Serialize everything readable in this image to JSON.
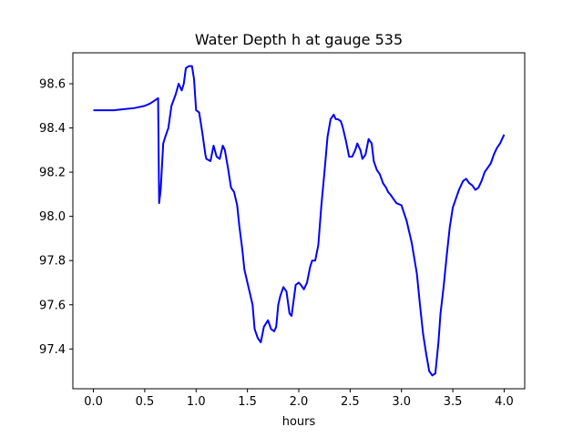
{
  "chart_data": {
    "type": "line",
    "title": "Water Depth h at gauge 535",
    "xlabel": "hours",
    "ylabel": "",
    "xlim": [
      -0.2,
      4.2
    ],
    "ylim": [
      97.22,
      98.74
    ],
    "xticks": [
      0.0,
      0.5,
      1.0,
      1.5,
      2.0,
      2.5,
      3.0,
      3.5,
      4.0
    ],
    "xtick_labels": [
      "0.0",
      "0.5",
      "1.0",
      "1.5",
      "2.0",
      "2.5",
      "3.0",
      "3.5",
      "4.0"
    ],
    "yticks": [
      97.4,
      97.6,
      97.8,
      98.0,
      98.2,
      98.4,
      98.6
    ],
    "ytick_labels": [
      "97.4",
      "97.6",
      "97.8",
      "98.0",
      "98.2",
      "98.4",
      "98.6"
    ],
    "grid": false,
    "series": [
      {
        "color": "#0000ff",
        "x": [
          0.0,
          0.2,
          0.3,
          0.4,
          0.5,
          0.55,
          0.6,
          0.63,
          0.64,
          0.655,
          0.68,
          0.7,
          0.73,
          0.76,
          0.8,
          0.83,
          0.86,
          0.88,
          0.9,
          0.93,
          0.96,
          0.98,
          1.0,
          1.03,
          1.06,
          1.09,
          1.1,
          1.14,
          1.17,
          1.2,
          1.23,
          1.26,
          1.28,
          1.31,
          1.34,
          1.37,
          1.4,
          1.42,
          1.45,
          1.47,
          1.5,
          1.52,
          1.55,
          1.57,
          1.6,
          1.63,
          1.66,
          1.7,
          1.73,
          1.76,
          1.78,
          1.8,
          1.82,
          1.85,
          1.88,
          1.91,
          1.93,
          1.95,
          1.97,
          2.0,
          2.02,
          2.05,
          2.08,
          2.11,
          2.13,
          2.16,
          2.19,
          2.22,
          2.25,
          2.28,
          2.31,
          2.34,
          2.36,
          2.38,
          2.41,
          2.43,
          2.46,
          2.49,
          2.52,
          2.55,
          2.57,
          2.6,
          2.62,
          2.65,
          2.68,
          2.71,
          2.73,
          2.76,
          2.79,
          2.82,
          2.85,
          2.87,
          2.89,
          2.92,
          2.95,
          3.0,
          3.05,
          3.1,
          3.15,
          3.18,
          3.21,
          3.24,
          3.27,
          3.3,
          3.33,
          3.36,
          3.38,
          3.41,
          3.44,
          3.47,
          3.5,
          3.53,
          3.56,
          3.6,
          3.63,
          3.66,
          3.69,
          3.72,
          3.75,
          3.78,
          3.81,
          3.84,
          3.87,
          3.9,
          3.93,
          3.96,
          4.0
        ],
        "y": [
          98.48,
          98.48,
          98.485,
          98.49,
          98.5,
          98.51,
          98.525,
          98.535,
          98.06,
          98.12,
          98.33,
          98.36,
          98.4,
          98.5,
          98.55,
          98.6,
          98.57,
          98.6,
          98.67,
          98.68,
          98.68,
          98.62,
          98.48,
          98.47,
          98.38,
          98.28,
          98.26,
          98.25,
          98.32,
          98.27,
          98.26,
          98.32,
          98.3,
          98.22,
          98.13,
          98.11,
          98.05,
          97.96,
          97.85,
          97.76,
          97.7,
          97.66,
          97.6,
          97.49,
          97.45,
          97.43,
          97.5,
          97.53,
          97.49,
          97.48,
          97.5,
          97.6,
          97.64,
          97.68,
          97.66,
          97.56,
          97.55,
          97.62,
          97.69,
          97.7,
          97.69,
          97.67,
          97.7,
          97.77,
          97.8,
          97.8,
          97.87,
          98.05,
          98.2,
          98.36,
          98.44,
          98.46,
          98.44,
          98.44,
          98.43,
          98.4,
          98.34,
          98.27,
          98.27,
          98.3,
          98.33,
          98.3,
          98.26,
          98.28,
          98.35,
          98.33,
          98.25,
          98.21,
          98.19,
          98.15,
          98.13,
          98.11,
          98.1,
          98.08,
          98.06,
          98.05,
          97.98,
          97.88,
          97.74,
          97.6,
          97.47,
          97.38,
          97.3,
          97.28,
          97.29,
          97.43,
          97.56,
          97.68,
          97.82,
          97.95,
          98.04,
          98.08,
          98.12,
          98.16,
          98.17,
          98.15,
          98.14,
          98.12,
          98.13,
          98.16,
          98.2,
          98.22,
          98.24,
          98.28,
          98.31,
          98.33,
          98.37
        ]
      }
    ]
  }
}
